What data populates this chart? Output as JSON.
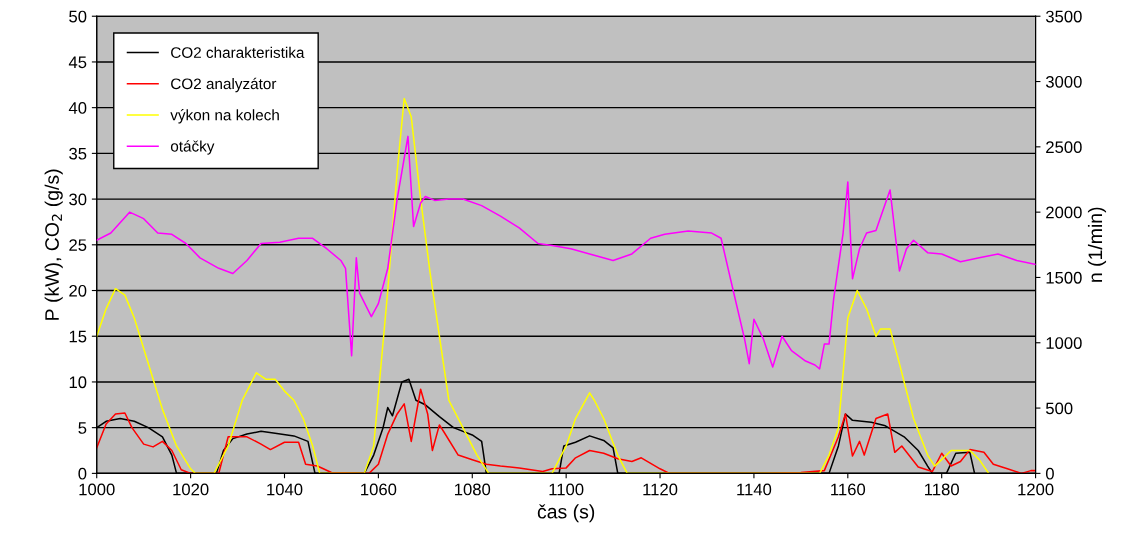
{
  "chart_data": {
    "type": "line",
    "xlabel": "čas (s)",
    "ylabel": "P (kW), CO$_{2}$ (g/s)",
    "y2label": "n (1/min)",
    "xlim": [
      1000,
      1200
    ],
    "xticks": [
      1000,
      1020,
      1040,
      1060,
      1080,
      1100,
      1120,
      1140,
      1160,
      1180,
      1200
    ],
    "ylim": [
      0,
      50
    ],
    "yticks": [
      0,
      5,
      10,
      15,
      20,
      25,
      30,
      35,
      40,
      45,
      50
    ],
    "y2lim": [
      0,
      3500
    ],
    "y2ticks": [
      0,
      500,
      1000,
      1500,
      2000,
      2500,
      3000,
      3500
    ],
    "grid": "y",
    "legend": "top left",
    "marker": "none",
    "line_style": "solid",
    "series": [
      {
        "name": "CO2 charakteristika",
        "color": "#000000",
        "x": [
          1000,
          1002,
          1005,
          1008,
          1011,
          1014,
          1016,
          1017,
          1025.5,
          1027,
          1029,
          1032,
          1035,
          1038,
          1042,
          1045,
          1046.5,
          1057,
          1059,
          1061,
          1062,
          1063,
          1065,
          1066.5,
          1068,
          1070,
          1073,
          1076,
          1080,
          1082,
          1083,
          1098.5,
          1099.5,
          1102,
          1105,
          1108,
          1110,
          1111,
          1156,
          1158,
          1159.5,
          1161,
          1165,
          1168,
          1172,
          1175,
          1177,
          1178,
          1181,
          1183,
          1186,
          1187
        ],
        "values": [
          5,
          5.7,
          6,
          5.7,
          5,
          4,
          2,
          0,
          0,
          2.5,
          3.8,
          4.3,
          4.6,
          4.4,
          4.1,
          3.5,
          0,
          0,
          2,
          5,
          7.2,
          6.3,
          10,
          10.3,
          8,
          7.5,
          6.2,
          5,
          4.2,
          3.5,
          0,
          0,
          3,
          3.4,
          4.1,
          3.6,
          2.8,
          0,
          0,
          3,
          6.5,
          5.8,
          5.6,
          5.2,
          4,
          2.5,
          0.8,
          0,
          0,
          2.2,
          2.3,
          0
        ]
      },
      {
        "name": "CO2 analyzátor",
        "color": "#ff0000",
        "x": [
          1000,
          1002,
          1004,
          1006,
          1007.5,
          1010,
          1012,
          1014,
          1016,
          1018,
          1020,
          1026,
          1028,
          1030,
          1032,
          1035,
          1037,
          1040,
          1043,
          1044.5,
          1047,
          1050,
          1058,
          1060,
          1062,
          1064,
          1065.5,
          1067,
          1069,
          1070.5,
          1071.5,
          1073,
          1074,
          1077,
          1080,
          1083,
          1086,
          1090,
          1095,
          1097,
          1100,
          1102,
          1105,
          1108,
          1111,
          1114,
          1116,
          1118,
          1120,
          1122,
          1140,
          1150,
          1155,
          1158,
          1159.5,
          1161,
          1162.5,
          1163.5,
          1166,
          1168.5,
          1170,
          1171.5,
          1173,
          1175,
          1178,
          1180,
          1182,
          1184,
          1186,
          1189,
          1191,
          1194,
          1197,
          1199,
          1200
        ],
        "values": [
          2.8,
          5.4,
          6.5,
          6.6,
          5,
          3.2,
          2.9,
          3.5,
          2.5,
          0.4,
          0,
          0,
          4,
          4,
          4,
          3.2,
          2.6,
          3.4,
          3.4,
          1,
          0.8,
          0.1,
          0,
          1,
          4.3,
          6.5,
          7.6,
          3.5,
          9.2,
          6.5,
          2.5,
          5.3,
          4.5,
          2,
          1.5,
          1,
          0.8,
          0.6,
          0.2,
          0.5,
          0.6,
          1.7,
          2.5,
          2.2,
          1.6,
          1.3,
          1.7,
          1.1,
          0.5,
          0,
          0,
          0.1,
          0.3,
          4,
          6.5,
          1.9,
          3.5,
          2,
          6,
          6.5,
          2.3,
          3,
          2,
          0.7,
          0.2,
          2.2,
          0.8,
          1.3,
          2.6,
          2.3,
          1,
          0.5,
          0,
          0.3,
          0.3
        ]
      },
      {
        "name": "výkon na kolech",
        "color": "#ffff00",
        "x": [
          1000,
          1002,
          1004,
          1006,
          1008,
          1011,
          1014,
          1017,
          1020,
          1021,
          1025,
          1028,
          1031,
          1033,
          1034,
          1036,
          1038,
          1040,
          1042,
          1044,
          1046,
          1047.5,
          1057,
          1059,
          1062,
          1064,
          1065.5,
          1067,
          1069,
          1071,
          1073,
          1075,
          1078,
          1081,
          1083.5,
          1097,
          1100,
          1102,
          1105,
          1106,
          1108,
          1111,
          1113,
          1154,
          1156,
          1158,
          1160,
          1162,
          1164,
          1166,
          1167,
          1169,
          1171,
          1174,
          1177,
          1178.5,
          1180,
          1182,
          1186,
          1188,
          1190
        ],
        "values": [
          15,
          18,
          20.2,
          19.5,
          17,
          12,
          7,
          3,
          0.5,
          0,
          0,
          3,
          8,
          10,
          11,
          10.3,
          10.3,
          9,
          8,
          6,
          3,
          0,
          0,
          3,
          20,
          33,
          41,
          39,
          30,
          22,
          15,
          8,
          5,
          2,
          0,
          0,
          3,
          6,
          8.8,
          8,
          6,
          2,
          0,
          0,
          2,
          5,
          17,
          20,
          18,
          15,
          15.8,
          15.8,
          12,
          6,
          2,
          0.8,
          1.5,
          2.5,
          2.5,
          1.5,
          0
        ]
      },
      {
        "name": "otáčky",
        "color": "#ff00ff",
        "axis": "y2",
        "x": [
          1000,
          1003,
          1007,
          1010,
          1013,
          1016,
          1019,
          1022,
          1026,
          1029,
          1032,
          1035,
          1039,
          1043,
          1046,
          1049,
          1052,
          1053,
          1054.3,
          1055.3,
          1056,
          1058.5,
          1060,
          1062,
          1064,
          1066.3,
          1067.5,
          1069,
          1070,
          1072,
          1075,
          1078,
          1082,
          1086,
          1090,
          1094,
          1097,
          1101,
          1105,
          1110,
          1114,
          1118,
          1121,
          1126,
          1131,
          1133,
          1135,
          1138,
          1139,
          1140,
          1142,
          1144,
          1146,
          1148,
          1151,
          1153,
          1154,
          1155,
          1156,
          1157,
          1159,
          1160,
          1161,
          1162.5,
          1164,
          1166,
          1169,
          1171,
          1172.5,
          1174,
          1177,
          1180,
          1184,
          1188,
          1192,
          1196,
          1200
        ],
        "values": [
          1785,
          1840,
          2000,
          1950,
          1840,
          1830,
          1760,
          1650,
          1570,
          1530,
          1630,
          1760,
          1770,
          1800,
          1800,
          1720,
          1630,
          1570,
          900,
          1650,
          1380,
          1200,
          1300,
          1570,
          2100,
          2580,
          1890,
          2070,
          2120,
          2090,
          2100,
          2100,
          2050,
          1970,
          1880,
          1760,
          1745,
          1720,
          1680,
          1630,
          1680,
          1800,
          1830,
          1855,
          1840,
          1800,
          1490,
          1030,
          840,
          1180,
          1030,
          815,
          1050,
          940,
          860,
          830,
          800,
          990,
          990,
          1340,
          1840,
          2230,
          1490,
          1720,
          1840,
          1860,
          2170,
          1550,
          1720,
          1785,
          1690,
          1680,
          1620,
          1650,
          1680,
          1630,
          1600
        ]
      }
    ]
  }
}
